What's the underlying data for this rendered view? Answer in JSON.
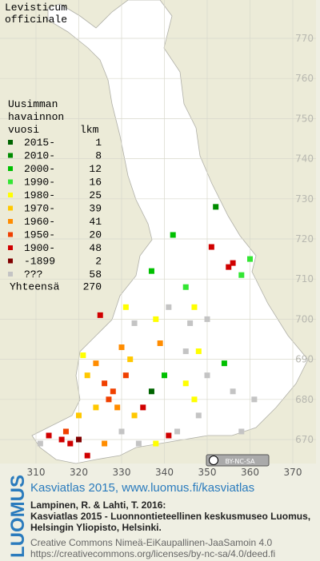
{
  "title": [
    "Levisticum",
    "officinale"
  ],
  "legend": {
    "heading": [
      "Uusimman",
      "havainnon",
      "vuosi"
    ],
    "count_heading": "lkm",
    "items": [
      {
        "label": "2015-",
        "count": 1,
        "color": "#006400"
      },
      {
        "label": "2010-",
        "count": 8,
        "color": "#008c00"
      },
      {
        "label": "2000-",
        "count": 12,
        "color": "#00c000"
      },
      {
        "label": "1990-",
        "count": 16,
        "color": "#33e633"
      },
      {
        "label": "1980-",
        "count": 25,
        "color": "#ffff00"
      },
      {
        "label": "1970-",
        "count": 39,
        "color": "#ffc800"
      },
      {
        "label": "1960-",
        "count": 41,
        "color": "#ff8c00"
      },
      {
        "label": "1950-",
        "count": 20,
        "color": "#f04000"
      },
      {
        "label": "1900-",
        "count": 48,
        "color": "#d00000"
      },
      {
        "label": "-1899",
        "count": 2,
        "color": "#800000"
      },
      {
        "label": "???",
        "count": 58,
        "color": "#c4c4c4"
      }
    ],
    "total_label": "Yhteensä",
    "total": 270
  },
  "axes": {
    "xticks": [
      310,
      320,
      330,
      340,
      350,
      360,
      370
    ],
    "yticks": [
      770,
      760,
      750,
      740,
      730,
      720,
      710,
      700,
      690,
      680,
      670
    ]
  },
  "points": [
    {
      "x": 352,
      "y": 728,
      "class": 1
    },
    {
      "x": 342,
      "y": 721,
      "class": 2
    },
    {
      "x": 351,
      "y": 718,
      "class": 8
    },
    {
      "x": 355,
      "y": 713,
      "class": 8
    },
    {
      "x": 356,
      "y": 714,
      "class": 8
    },
    {
      "x": 345,
      "y": 708,
      "class": 3
    },
    {
      "x": 337,
      "y": 712,
      "class": 2
    },
    {
      "x": 358,
      "y": 711,
      "class": 3
    },
    {
      "x": 360,
      "y": 715,
      "class": 3
    },
    {
      "x": 347,
      "y": 703,
      "class": 4
    },
    {
      "x": 341,
      "y": 703,
      "class": 10
    },
    {
      "x": 346,
      "y": 699,
      "class": 10
    },
    {
      "x": 350,
      "y": 700,
      "class": 10
    },
    {
      "x": 330,
      "y": 693,
      "class": 6
    },
    {
      "x": 331,
      "y": 686,
      "class": 7
    },
    {
      "x": 326,
      "y": 684,
      "class": 7
    },
    {
      "x": 328,
      "y": 682,
      "class": 7
    },
    {
      "x": 322,
      "y": 686,
      "class": 5
    },
    {
      "x": 324,
      "y": 689,
      "class": 6
    },
    {
      "x": 332,
      "y": 690,
      "class": 5
    },
    {
      "x": 339,
      "y": 694,
      "class": 6
    },
    {
      "x": 340,
      "y": 686,
      "class": 2
    },
    {
      "x": 337,
      "y": 682,
      "class": 0
    },
    {
      "x": 335,
      "y": 678,
      "class": 8
    },
    {
      "x": 345,
      "y": 684,
      "class": 4
    },
    {
      "x": 348,
      "y": 676,
      "class": 10
    },
    {
      "x": 343,
      "y": 672,
      "class": 10
    },
    {
      "x": 341,
      "y": 671,
      "class": 8
    },
    {
      "x": 350,
      "y": 686,
      "class": 10
    },
    {
      "x": 356,
      "y": 682,
      "class": 10
    },
    {
      "x": 358,
      "y": 672,
      "class": 10
    },
    {
      "x": 361,
      "y": 680,
      "class": 10
    },
    {
      "x": 313,
      "y": 671,
      "class": 8
    },
    {
      "x": 316,
      "y": 670,
      "class": 8
    },
    {
      "x": 318,
      "y": 669,
      "class": 8
    },
    {
      "x": 320,
      "y": 670,
      "class": 9
    },
    {
      "x": 317,
      "y": 672,
      "class": 7
    },
    {
      "x": 311,
      "y": 669,
      "class": 10
    },
    {
      "x": 322,
      "y": 666,
      "class": 8
    },
    {
      "x": 326,
      "y": 669,
      "class": 6
    },
    {
      "x": 330,
      "y": 672,
      "class": 10
    },
    {
      "x": 334,
      "y": 669,
      "class": 10
    },
    {
      "x": 338,
      "y": 669,
      "class": 4
    },
    {
      "x": 345,
      "y": 692,
      "class": 10
    },
    {
      "x": 321,
      "y": 691,
      "class": 4
    },
    {
      "x": 333,
      "y": 699,
      "class": 10
    },
    {
      "x": 325,
      "y": 701,
      "class": 8
    },
    {
      "x": 331,
      "y": 703,
      "class": 4
    },
    {
      "x": 338,
      "y": 700,
      "class": 4
    },
    {
      "x": 327,
      "y": 680,
      "class": 7
    },
    {
      "x": 329,
      "y": 678,
      "class": 6
    },
    {
      "x": 324,
      "y": 678,
      "class": 5
    },
    {
      "x": 333,
      "y": 676,
      "class": 5
    },
    {
      "x": 320,
      "y": 676,
      "class": 5
    },
    {
      "x": 348,
      "y": 692,
      "class": 4
    },
    {
      "x": 354,
      "y": 689,
      "class": 2
    },
    {
      "x": 347,
      "y": 680,
      "class": 4
    }
  ],
  "license_badge": "BY-NC-SA",
  "footer": {
    "logo": "LUOMUS",
    "headline": "Kasviatlas 2015, www.luomus.fi/kasviatlas",
    "citation": [
      "Lampinen, R. & Lahti, T. 2016:",
      "Kasviatlas 2015 - Luonnontieteellinen keskusmuseo Luomus,",
      "Helsingin Yliopisto, Helsinki."
    ],
    "license": [
      "Creative Commons Nimeä-EiKaupallinen-JaaSamoin 4.0",
      "https://creativecommons.org/licenses/by-nc-sa/4.0/deed.fi"
    ]
  }
}
